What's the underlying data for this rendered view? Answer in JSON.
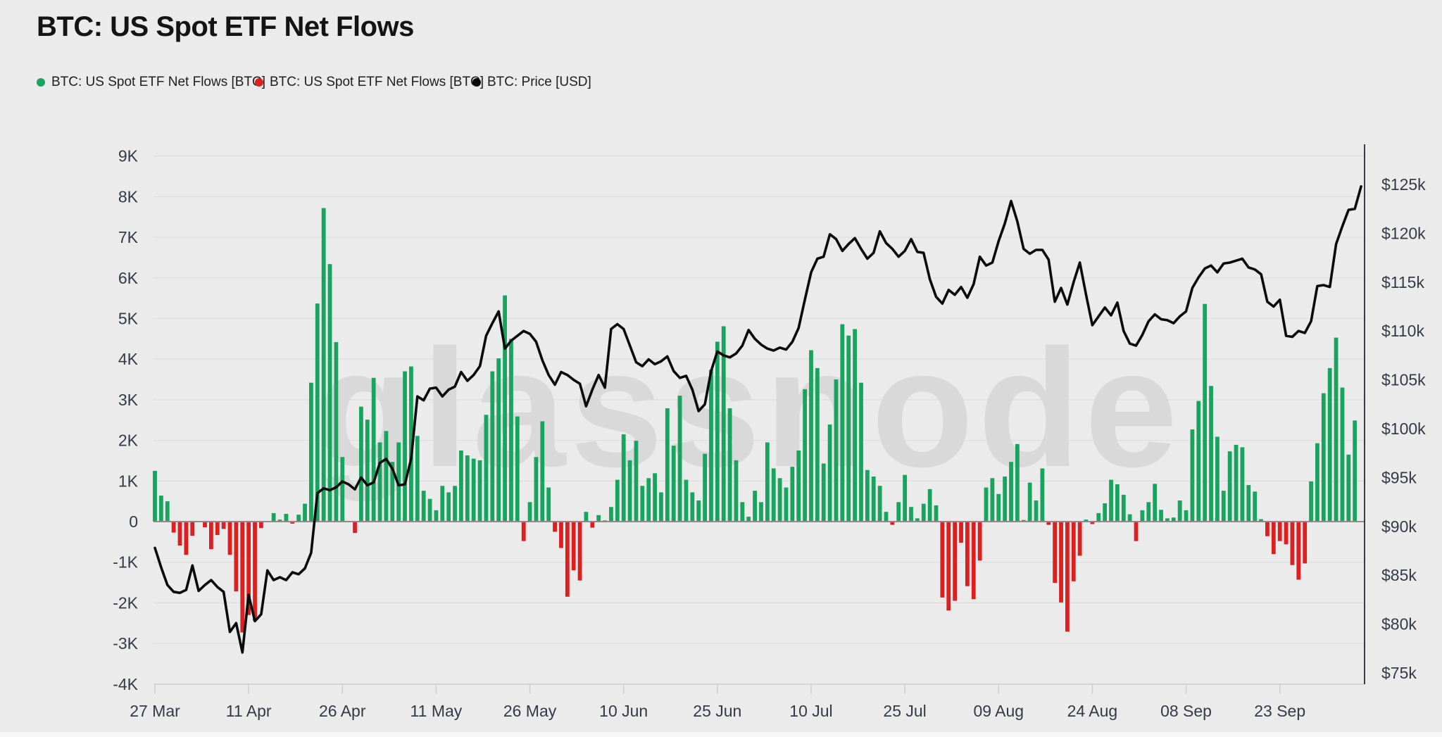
{
  "header": {
    "title": "BTC: US Spot ETF Net Flows"
  },
  "legend": [
    {
      "label": "BTC: US Spot ETF Net Flows [BTC]",
      "color": "#18a45f"
    },
    {
      "label": "BTC: US Spot ETF Net Flows [BTC]",
      "color": "#dc2020"
    },
    {
      "label": "BTC: Price [USD]",
      "color": "#0a0a0a"
    }
  ],
  "watermark": "glassnode",
  "colors": {
    "background": "#ebebeb",
    "gridline": "#dedede",
    "zero_line": "#8c8c8c",
    "bar_positive": "#18a45f",
    "bar_negative": "#dc2020",
    "price_line": "#0a0a0a",
    "axis_text": "#333a47",
    "spine": "#3a3d45",
    "bottom_axis": "#cfcfcf",
    "watermark_text": "#d9d9d9"
  },
  "chart_data": {
    "type": "bar",
    "subtype": "bar+line dual axis",
    "title": "BTC: US Spot ETF Net Flows",
    "grid": "horizontal gridlines on",
    "legend_position": "top-left",
    "left_axis": {
      "label": "Net Flows [BTC]",
      "ticks": [
        "9K",
        "8K",
        "7K",
        "6K",
        "5K",
        "4K",
        "3K",
        "2K",
        "1K",
        "0",
        "-1K",
        "-2K",
        "-3K",
        "-4K"
      ],
      "tick_values_k": [
        9,
        8,
        7,
        6,
        5,
        4,
        3,
        2,
        1,
        0,
        -1,
        -2,
        -3,
        -4
      ],
      "range_k": [
        -4,
        9
      ]
    },
    "right_axis": {
      "label": "BTC Price [USD]",
      "ticks": [
        "$125k",
        "$120k",
        "$115k",
        "$110k",
        "$105k",
        "$100k",
        "$95k",
        "$90k",
        "$85k",
        "$80k",
        "$75k"
      ],
      "tick_values_kusd": [
        125,
        120,
        115,
        110,
        105,
        100,
        95,
        90,
        85,
        80,
        75
      ],
      "range_kusd": [
        75,
        125
      ]
    },
    "x_axis": {
      "start_label": "27 Mar",
      "tick_labels": [
        "27 Mar",
        "11 Apr",
        "26 Apr",
        "11 May",
        "26 May",
        "10 Jun",
        "25 Jun",
        "10 Jul",
        "25 Jul",
        "09 Aug",
        "24 Aug",
        "08 Sep",
        "23 Sep"
      ],
      "tick_day_index": [
        0,
        15,
        30,
        45,
        60,
        75,
        90,
        105,
        120,
        135,
        150,
        165,
        180
      ],
      "days_total": 194
    },
    "series": [
      {
        "name": "BTC: US Spot ETF Net Flows [BTC]",
        "type": "bar",
        "unit": "thousand BTC",
        "positive_color": "#18a45f",
        "negative_color": "#dc2020",
        "values_k": [
          1.25,
          0.64,
          0.5,
          -0.27,
          -0.59,
          -0.82,
          -0.35,
          0,
          -0.14,
          -0.68,
          -0.33,
          -0.18,
          -0.82,
          -1.72,
          -2.73,
          -2.3,
          -2.44,
          -0.16,
          0,
          0.21,
          0.05,
          0.19,
          -0.05,
          0.17,
          0.44,
          3.42,
          5.37,
          7.72,
          6.34,
          4.42,
          1.59,
          0,
          -0.28,
          2.83,
          2.51,
          3.54,
          1.95,
          2.23,
          1.47,
          1.95,
          3.7,
          3.82,
          2.11,
          0.76,
          0.56,
          0.28,
          0.88,
          0.72,
          0.88,
          1.75,
          1.63,
          1.55,
          1.51,
          2.63,
          3.7,
          4.02,
          5.57,
          4.5,
          2.59,
          -0.48,
          0.48,
          1.59,
          2.47,
          0.84,
          -0.25,
          -0.65,
          -1.85,
          -1.2,
          -1.45,
          0.24,
          -0.15,
          0.16,
          0.03,
          0.36,
          1.03,
          2.15,
          1.51,
          1.99,
          0.88,
          1.07,
          1.19,
          0.72,
          2.79,
          1.87,
          3.1,
          1.03,
          0.72,
          0.52,
          1.67,
          3.74,
          4.43,
          4.81,
          2.79,
          1.51,
          0.48,
          0.12,
          0.76,
          0.48,
          1.95,
          1.31,
          1.07,
          0.84,
          1.35,
          1.75,
          3.26,
          4.22,
          3.78,
          1.43,
          2.39,
          3.5,
          4.86,
          4.58,
          4.74,
          3.42,
          1.27,
          1.11,
          0.88,
          0.24,
          -0.08,
          0.48,
          1.15,
          0.36,
          0.08,
          0.44,
          0.8,
          0.4,
          -1.87,
          -2.19,
          -1.95,
          -0.52,
          -1.59,
          -1.91,
          -0.96,
          0.84,
          1.07,
          0.68,
          1.11,
          1.47,
          1.91,
          0.04,
          0.96,
          0.52,
          1.31,
          -0.08,
          -1.51,
          -1.99,
          -2.71,
          -1.47,
          -0.84,
          0.05,
          -0.06,
          0.21,
          0.45,
          1.03,
          0.92,
          0.66,
          0.18,
          -0.48,
          0.28,
          0.48,
          0.93,
          0.29,
          0.08,
          0.1,
          0.52,
          0.28,
          2.27,
          2.97,
          5.36,
          3.34,
          2.09,
          0.76,
          1.73,
          1.89,
          1.83,
          0.9,
          0.74,
          0.06,
          -0.36,
          -0.8,
          -0.48,
          -0.56,
          -1.07,
          -1.43,
          -1.03,
          0.99,
          1.93,
          3.16,
          3.78,
          4.53,
          3.3,
          1.65,
          2.49
        ]
      },
      {
        "name": "BTC: Price [USD]",
        "type": "line",
        "unit": "thousand USD",
        "color": "#0a0a0a",
        "values_kusd": [
          87.8,
          85.8,
          84.0,
          83.3,
          83.2,
          83.5,
          86.0,
          83.4,
          84.0,
          84.5,
          83.8,
          83.3,
          79.2,
          80.1,
          77.1,
          83.0,
          80.3,
          81.0,
          85.5,
          84.5,
          84.8,
          84.5,
          85.3,
          85.1,
          85.7,
          87.3,
          93.4,
          93.9,
          93.7,
          94.0,
          94.6,
          94.3,
          93.8,
          95.0,
          94.2,
          94.5,
          96.5,
          96.9,
          95.9,
          94.2,
          94.3,
          96.9,
          103.3,
          102.9,
          104.1,
          104.2,
          103.3,
          104.0,
          104.3,
          105.8,
          104.9,
          105.5,
          106.4,
          109.5,
          110.8,
          112.0,
          108.2,
          109.0,
          109.5,
          110.0,
          109.7,
          108.9,
          107.0,
          105.5,
          104.5,
          105.8,
          105.5,
          105.0,
          104.6,
          102.3,
          104.0,
          105.5,
          104.2,
          110.2,
          110.7,
          110.2,
          108.5,
          106.8,
          106.4,
          107.1,
          106.6,
          106.9,
          107.4,
          105.9,
          105.2,
          105.4,
          104.0,
          101.8,
          102.5,
          105.9,
          107.9,
          107.5,
          107.3,
          107.7,
          108.5,
          110.1,
          109.2,
          108.6,
          108.2,
          108.0,
          108.3,
          108.1,
          108.9,
          110.3,
          113.2,
          116.0,
          117.4,
          117.6,
          119.9,
          119.4,
          118.2,
          118.9,
          119.5,
          118.4,
          117.4,
          118.0,
          120.2,
          119.0,
          118.4,
          117.6,
          118.2,
          119.4,
          118.1,
          118.0,
          115.3,
          113.5,
          112.8,
          114.2,
          113.7,
          114.5,
          113.4,
          114.8,
          117.6,
          116.7,
          117.0,
          119.2,
          121.0,
          123.3,
          121.2,
          118.4,
          117.9,
          118.3,
          118.3,
          117.3,
          113.0,
          114.4,
          112.7,
          115.0,
          117.0,
          113.7,
          110.6,
          111.5,
          112.4,
          111.6,
          112.9,
          110.0,
          108.7,
          108.5,
          109.6,
          111.0,
          111.7,
          111.2,
          111.1,
          110.8,
          111.5,
          112.0,
          114.4,
          115.5,
          116.4,
          116.7,
          116.0,
          116.9,
          117.0,
          117.2,
          117.4,
          116.5,
          116.3,
          115.8,
          113.0,
          112.5,
          113.2,
          109.5,
          109.4,
          110.0,
          109.8,
          111.0,
          114.6,
          114.7,
          114.5,
          118.9,
          120.7,
          122.4,
          122.5,
          124.8
        ]
      }
    ]
  }
}
